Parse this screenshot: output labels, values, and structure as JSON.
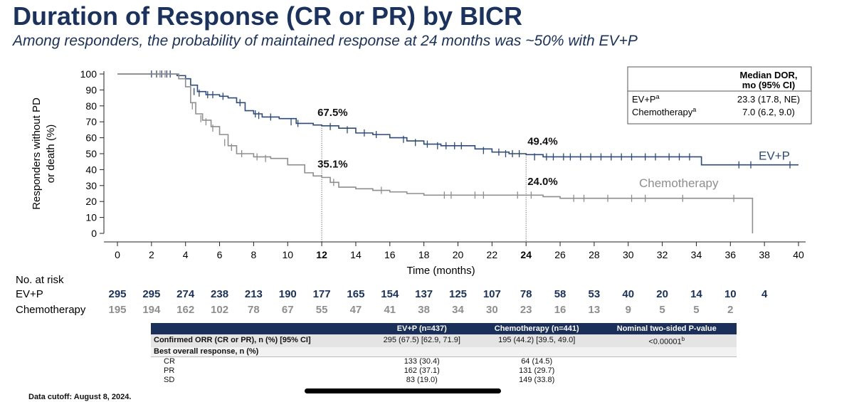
{
  "header": {
    "title": "Duration of Response (CR or PR) by BICR",
    "subtitle": "Among responders, the probability of maintained response at 24 months was ~50% with EV+P"
  },
  "chart_data": {
    "type": "line",
    "title": "Duration of Response (CR or PR) by BICR",
    "xlabel": "Time (months)",
    "ylabel": "Responders without PD or death (%)",
    "xlim": [
      0,
      40
    ],
    "ylim": [
      0,
      100
    ],
    "x_ticks": [
      0,
      2,
      4,
      6,
      8,
      10,
      12,
      14,
      16,
      18,
      20,
      22,
      24,
      26,
      28,
      30,
      32,
      34,
      36,
      38,
      40
    ],
    "y_ticks": [
      0,
      10,
      20,
      30,
      40,
      50,
      60,
      70,
      80,
      90,
      100
    ],
    "bold_x_ticks": [
      12,
      24
    ],
    "series": [
      {
        "name": "EV+P",
        "color": "#2b4a80",
        "label": "EV+P",
        "points": [
          [
            0,
            100
          ],
          [
            3.2,
            100
          ],
          [
            3.5,
            99
          ],
          [
            4.0,
            97
          ],
          [
            4.3,
            93
          ],
          [
            4.7,
            89
          ],
          [
            5.2,
            87
          ],
          [
            6.0,
            86
          ],
          [
            6.5,
            85
          ],
          [
            7.0,
            82
          ],
          [
            7.5,
            77
          ],
          [
            8.0,
            75
          ],
          [
            8.5,
            73
          ],
          [
            9.5,
            72
          ],
          [
            10.5,
            69
          ],
          [
            11.5,
            68
          ],
          [
            12,
            67.5
          ],
          [
            13,
            66
          ],
          [
            14,
            63
          ],
          [
            15,
            62
          ],
          [
            16,
            60
          ],
          [
            17,
            58
          ],
          [
            18,
            56
          ],
          [
            19,
            55
          ],
          [
            20,
            55
          ],
          [
            21,
            53
          ],
          [
            22,
            51
          ],
          [
            23,
            50
          ],
          [
            24,
            49.4
          ],
          [
            25,
            48
          ],
          [
            26,
            48
          ],
          [
            28,
            48
          ],
          [
            30,
            48
          ],
          [
            32,
            48
          ],
          [
            34,
            48
          ],
          [
            34.3,
            43
          ],
          [
            36,
            43
          ],
          [
            40,
            43
          ]
        ],
        "censors": [
          [
            2,
            100
          ],
          [
            2.3,
            100
          ],
          [
            2.6,
            100
          ],
          [
            2.9,
            100
          ],
          [
            3.1,
            100
          ],
          [
            4.5,
            89
          ],
          [
            4.8,
            88
          ],
          [
            5.3,
            87
          ],
          [
            5.6,
            87
          ],
          [
            6.2,
            86
          ],
          [
            7.2,
            82
          ],
          [
            8.1,
            75
          ],
          [
            8.3,
            74
          ],
          [
            9.0,
            73
          ],
          [
            10.2,
            70
          ],
          [
            10.6,
            69
          ],
          [
            12.5,
            67
          ],
          [
            13.5,
            65
          ],
          [
            14.5,
            63
          ],
          [
            15.2,
            62
          ],
          [
            16.8,
            59
          ],
          [
            17.5,
            57
          ],
          [
            18.2,
            56
          ],
          [
            18.8,
            55
          ],
          [
            19.3,
            55
          ],
          [
            19.8,
            55
          ],
          [
            20.2,
            55
          ],
          [
            21.5,
            52
          ],
          [
            22.4,
            51
          ],
          [
            22.8,
            50
          ],
          [
            23.2,
            50
          ],
          [
            23.6,
            50
          ],
          [
            24.5,
            48
          ],
          [
            25.2,
            48
          ],
          [
            25.6,
            48
          ],
          [
            26.2,
            48
          ],
          [
            26.6,
            48
          ],
          [
            27.2,
            48
          ],
          [
            27.8,
            48
          ],
          [
            28.4,
            48
          ],
          [
            29.0,
            48
          ],
          [
            29.6,
            48
          ],
          [
            30.2,
            48
          ],
          [
            31.0,
            48
          ],
          [
            31.6,
            48
          ],
          [
            32.4,
            48
          ],
          [
            33.0,
            48
          ],
          [
            33.6,
            48
          ],
          [
            36.5,
            43
          ],
          [
            37.2,
            43
          ],
          [
            39.5,
            43
          ]
        ],
        "annotations": [
          {
            "x": 12,
            "y": 67.5,
            "label": "67.5%"
          },
          {
            "x": 24,
            "y": 49.4,
            "label": "49.4%"
          }
        ]
      },
      {
        "name": "Chemotherapy",
        "color": "#8e8e8e",
        "label": "Chemotherapy",
        "points": [
          [
            0,
            100
          ],
          [
            3.2,
            100
          ],
          [
            3.6,
            97
          ],
          [
            4.0,
            92
          ],
          [
            4.3,
            82
          ],
          [
            4.6,
            75
          ],
          [
            5.0,
            71
          ],
          [
            5.5,
            67
          ],
          [
            6.0,
            62
          ],
          [
            6.5,
            55
          ],
          [
            7.0,
            50
          ],
          [
            8.0,
            48
          ],
          [
            9.0,
            47
          ],
          [
            10.0,
            43
          ],
          [
            11.0,
            38
          ],
          [
            11.5,
            36
          ],
          [
            12,
            35.1
          ],
          [
            12.5,
            32
          ],
          [
            13,
            29
          ],
          [
            14,
            28
          ],
          [
            15,
            27
          ],
          [
            16,
            26
          ],
          [
            17,
            25
          ],
          [
            18,
            24
          ],
          [
            19,
            24
          ],
          [
            20,
            24
          ],
          [
            22,
            24
          ],
          [
            24,
            24.0
          ],
          [
            25,
            23
          ],
          [
            26,
            22
          ],
          [
            28,
            22
          ],
          [
            30,
            22
          ],
          [
            32,
            22
          ],
          [
            34,
            22
          ],
          [
            36,
            22
          ],
          [
            37.3,
            22
          ],
          [
            37.3,
            0
          ]
        ],
        "censors": [
          [
            2.5,
            100
          ],
          [
            2.8,
            100
          ],
          [
            4.4,
            80
          ],
          [
            4.9,
            72
          ],
          [
            5.2,
            70
          ],
          [
            5.6,
            66
          ],
          [
            6.3,
            57
          ],
          [
            6.7,
            54
          ],
          [
            7.3,
            50
          ],
          [
            8.2,
            48
          ],
          [
            8.7,
            47
          ],
          [
            12.7,
            32
          ],
          [
            15.5,
            27
          ],
          [
            19.2,
            24
          ],
          [
            19.6,
            24
          ],
          [
            21.0,
            24
          ],
          [
            21.5,
            24
          ],
          [
            23.5,
            24
          ],
          [
            24.3,
            24
          ],
          [
            26.8,
            22
          ],
          [
            27.4,
            22
          ],
          [
            28.8,
            22
          ],
          [
            30.2,
            22
          ],
          [
            31.0,
            22
          ],
          [
            33.2,
            22
          ],
          [
            36.2,
            22
          ]
        ],
        "annotations": [
          {
            "x": 12,
            "y": 35.1,
            "label": "35.1%"
          },
          {
            "x": 24,
            "y": 24.0,
            "label": "24.0%"
          }
        ]
      }
    ],
    "legend_box": {
      "header": "Median DOR, mo (95% CI)",
      "rows": [
        {
          "arm": "EV+P",
          "sup": "a",
          "value": "23.3 (17.8, NE)"
        },
        {
          "arm": "Chemotherapy",
          "sup": "a",
          "value": "7.0 (6.2, 9.0)"
        }
      ]
    },
    "at_risk": {
      "title": "No. at risk",
      "times": [
        0,
        2,
        4,
        6,
        8,
        10,
        12,
        14,
        16,
        18,
        20,
        22,
        24,
        26,
        28,
        30,
        32,
        34,
        36,
        38
      ],
      "rows": [
        {
          "arm": "EV+P",
          "counts": [
            295,
            295,
            274,
            238,
            213,
            190,
            177,
            165,
            154,
            137,
            125,
            107,
            78,
            58,
            53,
            40,
            20,
            14,
            10,
            4
          ]
        },
        {
          "arm": "Chemotherapy",
          "counts": [
            195,
            194,
            162,
            102,
            78,
            67,
            55,
            47,
            41,
            38,
            34,
            30,
            23,
            16,
            13,
            9,
            5,
            5,
            2
          ]
        }
      ]
    }
  },
  "response_table": {
    "headers": [
      "",
      "EV+P (n=437)",
      "Chemotherapy (n=441)",
      "Nominal two-sided P-value"
    ],
    "orr_row": {
      "label": "Confirmed ORR (CR or PR), n (%) [95% CI]",
      "evp": "295 (67.5) [62.9, 71.9]",
      "chemo": "195 (44.2) [39.5, 49.0]",
      "p": "<0.00001",
      "p_sup": "b"
    },
    "bor_header": "Best overall response, n (%)",
    "rows": [
      {
        "label": "CR",
        "evp": "133 (30.4)",
        "chemo": "64 (14.5)"
      },
      {
        "label": "PR",
        "evp": "162 (37.1)",
        "chemo": "131 (29.7)"
      },
      {
        "label": "SD",
        "evp": "83 (19.0)",
        "chemo": "149 (33.8)"
      }
    ]
  },
  "footer": {
    "cutoff": "Data cutoff: August 8, 2024."
  }
}
